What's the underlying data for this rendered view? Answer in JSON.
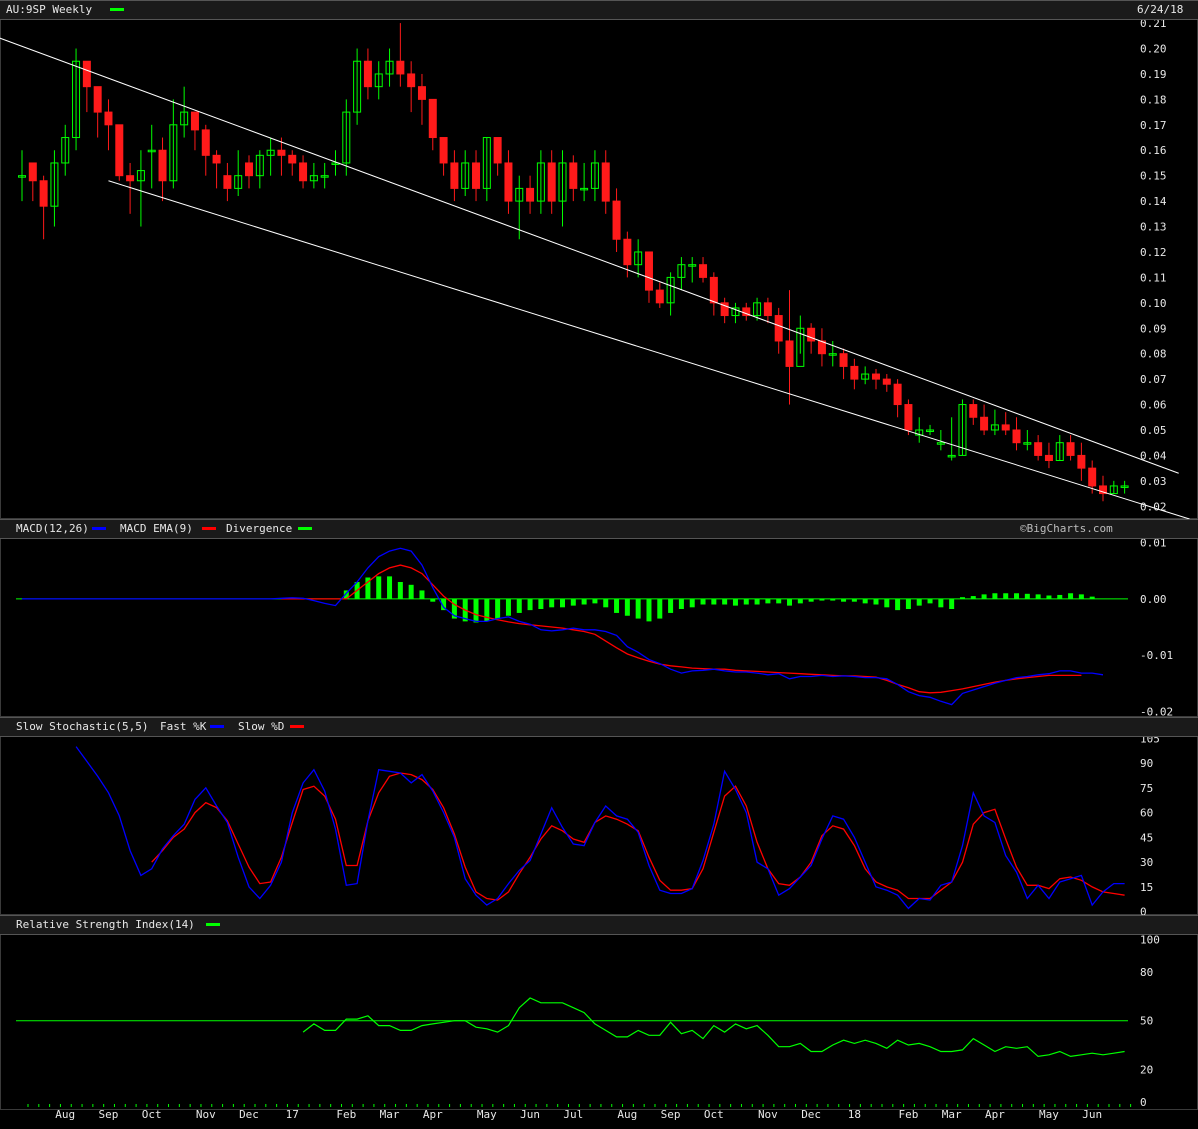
{
  "header": {
    "symbol_label": "AU:9SP Weekly",
    "date_label": "6/24/18",
    "copyright": "©BigCharts.com"
  },
  "colors": {
    "up": "#00ff00",
    "down": "#ff1a1a",
    "macd": "#0000ff",
    "signal": "#ff0000",
    "divergence": "#00ff00",
    "trendline": "#ffffff",
    "background": "#000000",
    "panel_header": "#1a1a1a"
  },
  "panels": {
    "macd": {
      "title": "MACD(12,26)",
      "legend_macd": "MACD",
      "legend_ema": "MACD EMA(9)",
      "legend_div": "Divergence"
    },
    "stoch": {
      "title": "Slow Stochastic(5,5)",
      "legend_fast": "Fast %K",
      "legend_slow": "Slow %D"
    },
    "rsi": {
      "title": "Relative Strength Index(14)"
    }
  },
  "chart_data": [
    {
      "type": "candlestick",
      "title": "AU:9SP Weekly",
      "ylim": [
        0.015,
        0.212
      ],
      "y_ticks": [
        "0.21",
        "0.20",
        "0.19",
        "0.18",
        "0.17",
        "0.16",
        "0.15",
        "0.14",
        "0.13",
        "0.12",
        "0.11",
        "0.10",
        "0.09",
        "0.08",
        "0.07",
        "0.06",
        "0.05",
        "0.04",
        "0.03",
        "0.02"
      ],
      "x_tick_labels": [
        "Aug",
        "Sep",
        "Oct",
        "Nov",
        "Dec",
        "17",
        "Feb",
        "Mar",
        "Apr",
        "May",
        "Jun",
        "Jul",
        "Aug",
        "Sep",
        "Oct",
        "Nov",
        "Dec",
        "18",
        "Feb",
        "Mar",
        "Apr",
        "May",
        "Jun"
      ],
      "x_tick_week_index": [
        4,
        8,
        12,
        17,
        21,
        25,
        30,
        34,
        38,
        43,
        47,
        51,
        56,
        60,
        64,
        69,
        73,
        77,
        82,
        86,
        90,
        95,
        99
      ],
      "closes": [
        0.15,
        0.148,
        0.138,
        0.155,
        0.165,
        0.195,
        0.185,
        0.175,
        0.17,
        0.15,
        0.148,
        0.152,
        0.16,
        0.148,
        0.17,
        0.175,
        0.168,
        0.158,
        0.155,
        0.145,
        0.15,
        0.15,
        0.158,
        0.16,
        0.158,
        0.155,
        0.148,
        0.15,
        0.15,
        0.155,
        0.175,
        0.195,
        0.185,
        0.19,
        0.195,
        0.19,
        0.185,
        0.18,
        0.165,
        0.155,
        0.145,
        0.155,
        0.145,
        0.165,
        0.155,
        0.14,
        0.145,
        0.14,
        0.155,
        0.14,
        0.155,
        0.145,
        0.145,
        0.155,
        0.14,
        0.125,
        0.115,
        0.12,
        0.105,
        0.1,
        0.11,
        0.115,
        0.115,
        0.11,
        0.1,
        0.095,
        0.098,
        0.095,
        0.1,
        0.095,
        0.085,
        0.075,
        0.09,
        0.085,
        0.08,
        0.08,
        0.075,
        0.07,
        0.072,
        0.07,
        0.068,
        0.06,
        0.05,
        0.05,
        0.05,
        0.045,
        0.04,
        0.06,
        0.055,
        0.05,
        0.052,
        0.05,
        0.045,
        0.045,
        0.04,
        0.038,
        0.045,
        0.04,
        0.035,
        0.028,
        0.025,
        0.028,
        0.028
      ],
      "opens": [
        0.15,
        0.155,
        0.148,
        0.138,
        0.155,
        0.165,
        0.195,
        0.185,
        0.175,
        0.17,
        0.15,
        0.148,
        0.16,
        0.16,
        0.148,
        0.17,
        0.175,
        0.168,
        0.158,
        0.15,
        0.145,
        0.155,
        0.15,
        0.158,
        0.16,
        0.158,
        0.155,
        0.148,
        0.15,
        0.155,
        0.155,
        0.175,
        0.195,
        0.185,
        0.19,
        0.195,
        0.19,
        0.185,
        0.18,
        0.165,
        0.155,
        0.145,
        0.155,
        0.145,
        0.165,
        0.155,
        0.14,
        0.145,
        0.14,
        0.155,
        0.14,
        0.155,
        0.145,
        0.145,
        0.155,
        0.14,
        0.125,
        0.115,
        0.12,
        0.105,
        0.1,
        0.11,
        0.115,
        0.115,
        0.11,
        0.1,
        0.095,
        0.098,
        0.095,
        0.1,
        0.095,
        0.085,
        0.075,
        0.09,
        0.085,
        0.08,
        0.08,
        0.075,
        0.07,
        0.072,
        0.07,
        0.068,
        0.06,
        0.048,
        0.05,
        0.045,
        0.04,
        0.04,
        0.06,
        0.055,
        0.05,
        0.052,
        0.05,
        0.045,
        0.045,
        0.04,
        0.038,
        0.045,
        0.04,
        0.035,
        0.028,
        0.025,
        0.028
      ],
      "highs": [
        0.16,
        0.155,
        0.15,
        0.16,
        0.17,
        0.2,
        0.19,
        0.185,
        0.18,
        0.17,
        0.155,
        0.16,
        0.17,
        0.165,
        0.18,
        0.185,
        0.175,
        0.17,
        0.16,
        0.155,
        0.16,
        0.158,
        0.16,
        0.165,
        0.165,
        0.16,
        0.158,
        0.155,
        0.155,
        0.16,
        0.18,
        0.2,
        0.2,
        0.195,
        0.2,
        0.21,
        0.195,
        0.19,
        0.18,
        0.165,
        0.16,
        0.16,
        0.16,
        0.165,
        0.165,
        0.16,
        0.15,
        0.15,
        0.16,
        0.16,
        0.16,
        0.158,
        0.155,
        0.16,
        0.16,
        0.145,
        0.128,
        0.125,
        0.12,
        0.108,
        0.112,
        0.118,
        0.118,
        0.118,
        0.112,
        0.102,
        0.1,
        0.1,
        0.102,
        0.102,
        0.098,
        0.105,
        0.095,
        0.092,
        0.09,
        0.085,
        0.082,
        0.078,
        0.075,
        0.074,
        0.072,
        0.07,
        0.062,
        0.055,
        0.052,
        0.05,
        0.055,
        0.062,
        0.062,
        0.06,
        0.058,
        0.057,
        0.055,
        0.05,
        0.048,
        0.045,
        0.048,
        0.048,
        0.045,
        0.038,
        0.032,
        0.03,
        0.03
      ],
      "lows": [
        0.14,
        0.14,
        0.125,
        0.13,
        0.15,
        0.16,
        0.175,
        0.165,
        0.16,
        0.148,
        0.135,
        0.13,
        0.145,
        0.14,
        0.145,
        0.165,
        0.16,
        0.15,
        0.145,
        0.14,
        0.142,
        0.145,
        0.145,
        0.15,
        0.15,
        0.15,
        0.145,
        0.145,
        0.145,
        0.15,
        0.15,
        0.17,
        0.18,
        0.18,
        0.185,
        0.185,
        0.175,
        0.17,
        0.16,
        0.15,
        0.14,
        0.142,
        0.14,
        0.14,
        0.15,
        0.135,
        0.125,
        0.135,
        0.135,
        0.135,
        0.13,
        0.14,
        0.14,
        0.14,
        0.135,
        0.12,
        0.11,
        0.11,
        0.1,
        0.098,
        0.095,
        0.105,
        0.108,
        0.108,
        0.095,
        0.092,
        0.092,
        0.093,
        0.093,
        0.092,
        0.08,
        0.06,
        0.08,
        0.08,
        0.075,
        0.075,
        0.07,
        0.066,
        0.068,
        0.066,
        0.065,
        0.055,
        0.048,
        0.045,
        0.048,
        0.042,
        0.038,
        0.04,
        0.052,
        0.048,
        0.048,
        0.048,
        0.042,
        0.042,
        0.038,
        0.035,
        0.038,
        0.038,
        0.03,
        0.025,
        0.022,
        0.025,
        0.025
      ],
      "trendlines": [
        {
          "from": [
            -9,
            0.215
          ],
          "to": [
            107,
            0.033
          ]
        },
        {
          "from": [
            8,
            0.148
          ],
          "to": [
            108,
            0.015
          ]
        }
      ]
    },
    {
      "type": "bar+line",
      "title": "MACD(12,26)",
      "ylim": [
        -0.021,
        0.011
      ],
      "y_ticks": [
        "0.01",
        "0.00",
        "-0.01",
        "-0.02"
      ],
      "zero_line": 0,
      "macd": [
        0,
        0,
        0,
        0,
        0,
        0,
        0,
        0,
        0,
        0,
        0,
        0,
        0,
        0,
        0,
        0,
        0,
        0,
        0,
        0,
        0,
        0,
        0,
        0,
        0.0001,
        0.0002,
        0.0001,
        -0.0003,
        -0.0008,
        -0.0012,
        0.001,
        0.003,
        0.0055,
        0.0075,
        0.0085,
        0.009,
        0.0085,
        0.006,
        0.002,
        -0.0015,
        -0.003,
        -0.0035,
        -0.004,
        -0.004,
        -0.0035,
        -0.0032,
        -0.004,
        -0.0045,
        -0.0055,
        -0.0057,
        -0.0055,
        -0.0052,
        -0.0055,
        -0.0055,
        -0.0058,
        -0.0065,
        -0.0085,
        -0.0095,
        -0.0108,
        -0.0115,
        -0.0125,
        -0.0132,
        -0.0128,
        -0.0127,
        -0.0125,
        -0.0128,
        -0.013,
        -0.013,
        -0.0132,
        -0.0135,
        -0.0133,
        -0.0142,
        -0.0138,
        -0.0138,
        -0.0136,
        -0.0138,
        -0.0137,
        -0.0138,
        -0.014,
        -0.014,
        -0.0142,
        -0.0152,
        -0.0165,
        -0.0172,
        -0.0175,
        -0.0182,
        -0.0188,
        -0.0168,
        -0.0162,
        -0.0156,
        -0.015,
        -0.0145,
        -0.014,
        -0.0138,
        -0.0135,
        -0.0133,
        -0.0128,
        -0.0128,
        -0.0132,
        -0.0132,
        -0.0135
      ],
      "signal": [
        null,
        null,
        null,
        null,
        null,
        null,
        null,
        null,
        null,
        null,
        null,
        null,
        null,
        null,
        null,
        null,
        null,
        null,
        null,
        null,
        null,
        null,
        null,
        null,
        0,
        0,
        0,
        0,
        0,
        0,
        0,
        0.0015,
        0.003,
        0.0045,
        0.0055,
        0.006,
        0.0055,
        0.0045,
        0.0025,
        0.0005,
        -0.001,
        -0.002,
        -0.0028,
        -0.0033,
        -0.0037,
        -0.0041,
        -0.0044,
        -0.0046,
        -0.0048,
        -0.005,
        -0.0052,
        -0.0055,
        -0.0058,
        -0.0063,
        -0.0075,
        -0.0087,
        -0.0098,
        -0.0105,
        -0.0111,
        -0.0116,
        -0.0119,
        -0.0121,
        -0.0123,
        -0.0124,
        -0.0125,
        -0.0125,
        -0.0127,
        -0.0128,
        -0.0129,
        -0.013,
        -0.0131,
        -0.0132,
        -0.0133,
        -0.0134,
        -0.0135,
        -0.0136,
        -0.0137,
        -0.0137,
        -0.0138,
        -0.0139,
        -0.0145,
        -0.0152,
        -0.0158,
        -0.0165,
        -0.0167,
        -0.0166,
        -0.0163,
        -0.016,
        -0.0156,
        -0.0152,
        -0.0148,
        -0.0145,
        -0.0142,
        -0.014,
        -0.0138,
        -0.0136,
        -0.0136,
        -0.0136,
        -0.0136
      ],
      "divergence": [
        0,
        0,
        0,
        0,
        0,
        0,
        0,
        0,
        0,
        0,
        0,
        0,
        0,
        0,
        0,
        0,
        0,
        0,
        0,
        0,
        0,
        0,
        0,
        0,
        0,
        0,
        0,
        0,
        0,
        0,
        0.0015,
        0.003,
        0.0038,
        0.004,
        0.004,
        0.003,
        0.0025,
        0.0015,
        -0.0005,
        -0.002,
        -0.0035,
        -0.004,
        -0.0042,
        -0.004,
        -0.0035,
        -0.003,
        -0.0025,
        -0.002,
        -0.0018,
        -0.0015,
        -0.0015,
        -0.0012,
        -0.001,
        -0.0008,
        -0.0015,
        -0.0025,
        -0.003,
        -0.0035,
        -0.004,
        -0.0035,
        -0.0025,
        -0.0018,
        -0.0015,
        -0.001,
        -0.001,
        -0.001,
        -0.0012,
        -0.001,
        -0.001,
        -0.0008,
        -0.0008,
        -0.0012,
        -0.0008,
        -0.0005,
        -0.0003,
        -0.0003,
        -0.0005,
        -0.0005,
        -0.0008,
        -0.001,
        -0.0015,
        -0.002,
        -0.0018,
        -0.0012,
        -0.0008,
        -0.0015,
        -0.0018,
        0.0003,
        0.0005,
        0.0008,
        0.001,
        0.001,
        0.001,
        0.0009,
        0.0008,
        0.0006,
        0.0007,
        0.001,
        0.0008,
        0.0004,
        0
      ],
      "legend": [
        "MACD",
        "MACD EMA(9)",
        "Divergence"
      ]
    },
    {
      "type": "line",
      "title": "Slow Stochastic(5,5)",
      "ylim": [
        -2,
        107
      ],
      "y_ticks": [
        "105",
        "90",
        "75",
        "60",
        "45",
        "30",
        "15",
        "0"
      ],
      "fast_k": [
        null,
        null,
        null,
        null,
        null,
        100,
        91,
        82,
        72,
        58,
        37,
        22,
        26,
        38,
        46,
        53,
        68,
        75,
        64,
        54,
        33,
        15,
        8,
        16,
        30,
        60,
        78,
        86,
        73,
        50,
        16,
        17,
        55,
        86,
        85,
        84,
        78,
        83,
        73,
        60,
        45,
        20,
        10,
        4,
        8,
        17,
        25,
        31,
        47,
        63,
        51,
        41,
        40,
        54,
        64,
        58,
        56,
        48,
        28,
        13,
        11,
        11,
        14,
        31,
        53,
        85,
        74,
        60,
        30,
        26,
        10,
        14,
        21,
        28,
        44,
        58,
        56,
        45,
        30,
        15,
        13,
        10,
        2,
        8,
        7,
        16,
        18,
        40,
        72,
        58,
        54,
        34,
        24,
        8,
        16,
        8,
        18,
        20,
        22,
        4,
        12,
        17,
        17
      ],
      "slow_d": [
        null,
        null,
        null,
        null,
        null,
        null,
        null,
        null,
        null,
        null,
        null,
        null,
        30,
        37,
        45,
        50,
        60,
        66,
        63,
        55,
        41,
        27,
        17,
        18,
        33,
        54,
        74,
        76,
        70,
        56,
        28,
        28,
        55,
        72,
        82,
        84,
        83,
        80,
        74,
        63,
        47,
        27,
        12,
        8,
        7,
        12,
        23,
        33,
        44,
        52,
        49,
        44,
        42,
        54,
        58,
        56,
        53,
        49,
        33,
        19,
        13,
        13,
        14,
        26,
        48,
        70,
        76,
        64,
        42,
        26,
        17,
        16,
        21,
        30,
        46,
        52,
        50,
        40,
        26,
        18,
        15,
        13,
        8,
        8,
        8,
        13,
        18,
        30,
        53,
        60,
        62,
        44,
        27,
        16,
        16,
        14,
        20,
        21,
        19,
        15,
        12,
        11,
        10
      ]
    },
    {
      "type": "line",
      "title": "Relative Strength Index(14)",
      "ylim": [
        -5,
        104
      ],
      "y_ticks": [
        "100",
        "80",
        "50",
        "20",
        "0"
      ],
      "reference_line": 50,
      "rsi": [
        null,
        null,
        null,
        null,
        null,
        null,
        null,
        null,
        null,
        null,
        null,
        null,
        null,
        null,
        null,
        null,
        null,
        null,
        null,
        null,
        null,
        null,
        null,
        null,
        null,
        null,
        43,
        48,
        44,
        44,
        51,
        51,
        53,
        47,
        47,
        44,
        44,
        47,
        48,
        49,
        50,
        50,
        46,
        45,
        43,
        47,
        58,
        64,
        61,
        61,
        61,
        58,
        55,
        48,
        44,
        40,
        40,
        44,
        41,
        41,
        49,
        42,
        44,
        39,
        47,
        43,
        48,
        45,
        47,
        41,
        34,
        34,
        36,
        31,
        31,
        35,
        38,
        36,
        38,
        36,
        33,
        38,
        35,
        36,
        34,
        31,
        31,
        32,
        39,
        35,
        31,
        34,
        33,
        34,
        28,
        29,
        31,
        28,
        29,
        30,
        29,
        30,
        31
      ]
    }
  ]
}
